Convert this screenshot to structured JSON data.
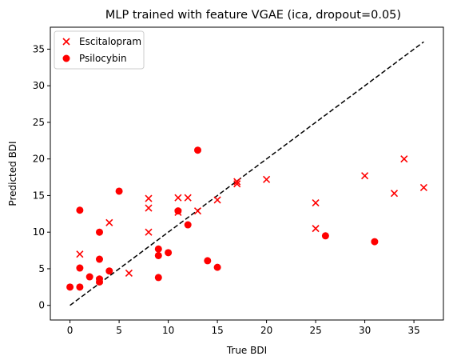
{
  "chart_data": {
    "type": "scatter",
    "title": "MLP trained with feature VGAE (ica, dropout=0.05)",
    "xlabel": "True BDI",
    "ylabel": "Predicted BDI",
    "xlim": [
      -2,
      38
    ],
    "ylim": [
      -2,
      38
    ],
    "xticks": [
      0,
      5,
      10,
      15,
      20,
      25,
      30,
      35
    ],
    "yticks": [
      0,
      5,
      10,
      15,
      20,
      25,
      30,
      35
    ],
    "grid": false,
    "legend_position": "top-left",
    "reference_line": {
      "style": "dashed",
      "color": "#000000",
      "from": [
        0,
        0
      ],
      "to": [
        36,
        36
      ]
    },
    "series": [
      {
        "name": "Escitalopram",
        "marker": "x",
        "color": "#ff0000",
        "points": [
          [
            1,
            7.0
          ],
          [
            3,
            3.4
          ],
          [
            4,
            11.3
          ],
          [
            6,
            4.4
          ],
          [
            8,
            14.6
          ],
          [
            8,
            13.3
          ],
          [
            8,
            10.0
          ],
          [
            11,
            14.7
          ],
          [
            11,
            12.7
          ],
          [
            12,
            14.7
          ],
          [
            13,
            12.9
          ],
          [
            15,
            14.4
          ],
          [
            17,
            16.9
          ],
          [
            17,
            16.6
          ],
          [
            20,
            17.2
          ],
          [
            25,
            14.0
          ],
          [
            25,
            10.5
          ],
          [
            30,
            17.7
          ],
          [
            33,
            15.3
          ],
          [
            34,
            20.0
          ],
          [
            36,
            16.1
          ]
        ]
      },
      {
        "name": "Psilocybin",
        "marker": "o",
        "color": "#ff0000",
        "points": [
          [
            0,
            2.5
          ],
          [
            1,
            2.5
          ],
          [
            1,
            5.1
          ],
          [
            1,
            13.0
          ],
          [
            2,
            3.9
          ],
          [
            3,
            3.2
          ],
          [
            3,
            3.6
          ],
          [
            3,
            6.3
          ],
          [
            3,
            10.0
          ],
          [
            4,
            4.7
          ],
          [
            5,
            15.6
          ],
          [
            9,
            3.8
          ],
          [
            9,
            6.8
          ],
          [
            9,
            7.7
          ],
          [
            10,
            7.2
          ],
          [
            11,
            12.9
          ],
          [
            12,
            11.0
          ],
          [
            13,
            21.2
          ],
          [
            14,
            6.1
          ],
          [
            15,
            5.2
          ],
          [
            26,
            9.5
          ],
          [
            31,
            8.7
          ]
        ]
      }
    ]
  }
}
